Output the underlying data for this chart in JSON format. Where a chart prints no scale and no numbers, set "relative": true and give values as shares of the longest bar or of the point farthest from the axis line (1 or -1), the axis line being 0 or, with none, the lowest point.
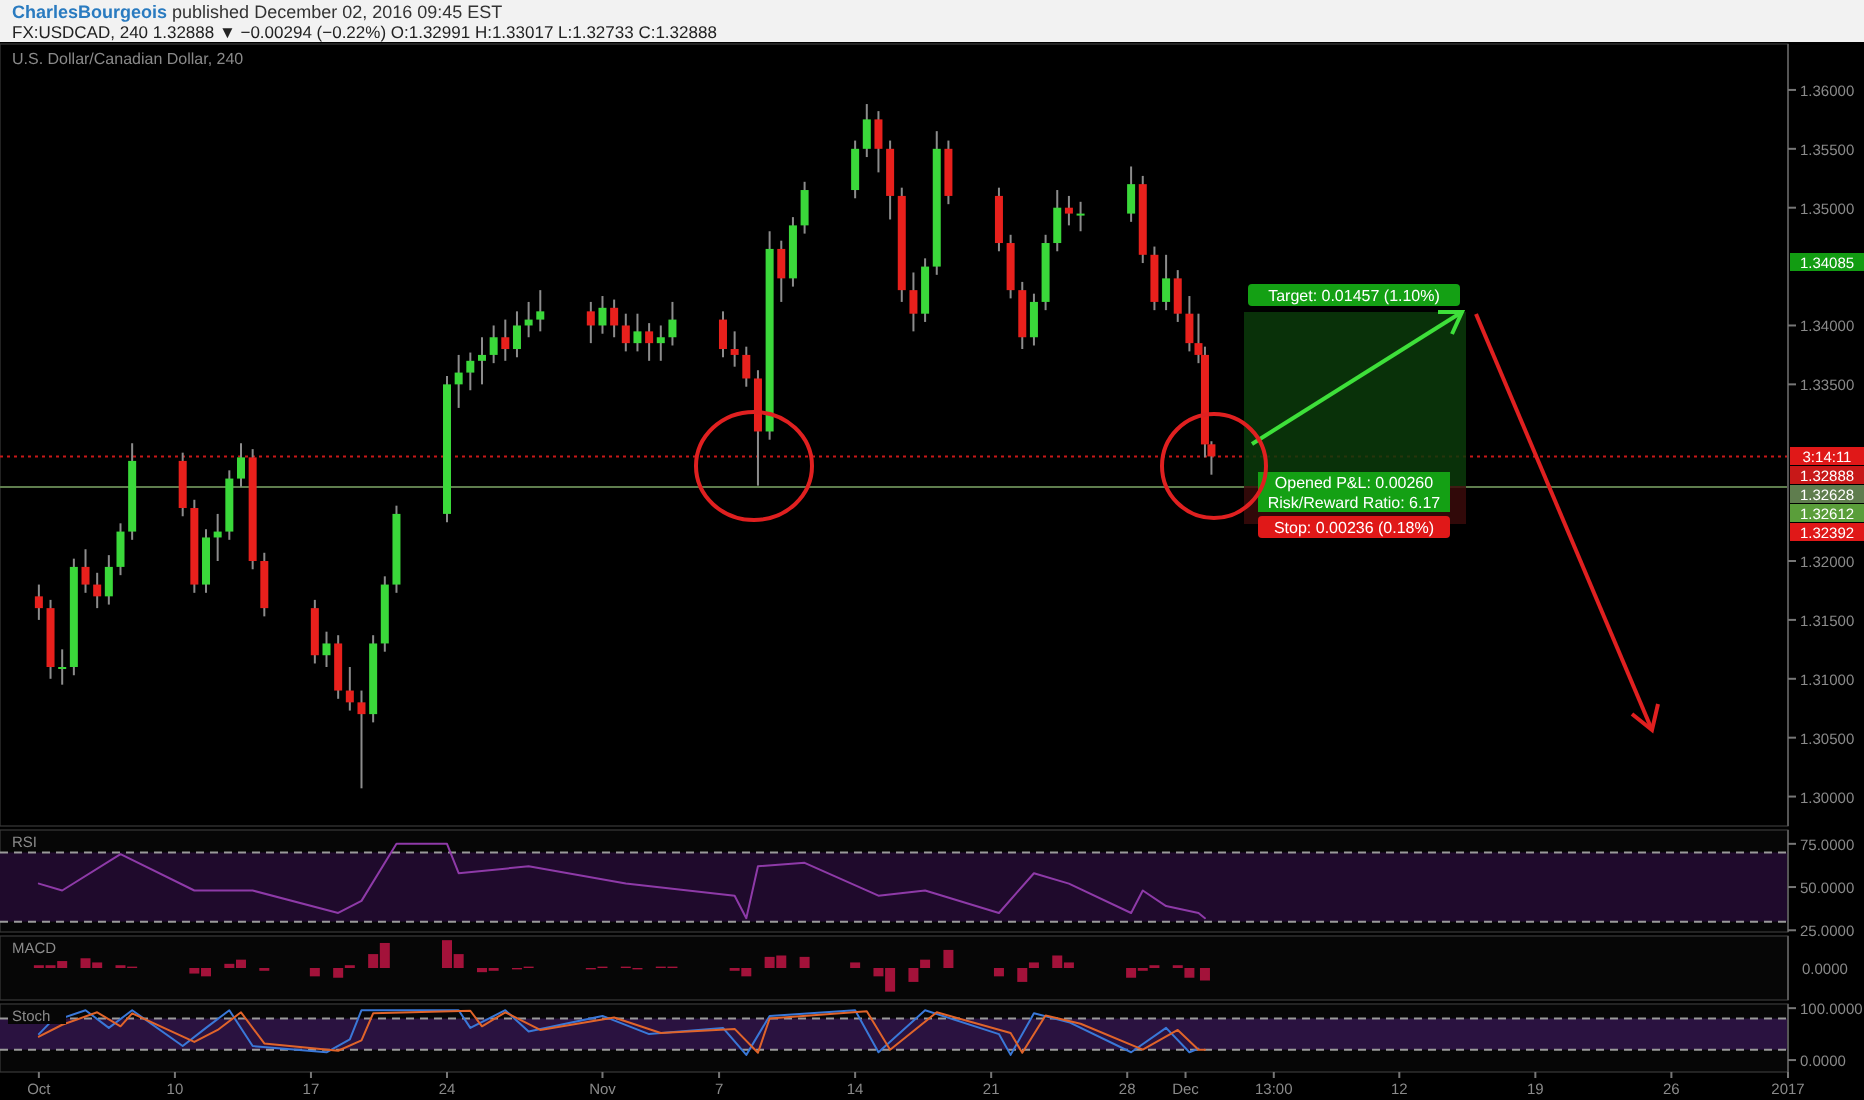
{
  "chart_data": [
    {
      "type": "candlestick",
      "title": "CharlesBourgeois published December 02, 2016 09:45 EST",
      "subtitle": "FX:USDCAD, 240 1.32888 ▼ −0.00294 (−0.22%) O:1.32991 H:1.33017 L:1.32733 C:1.32888",
      "x": [
        "2016-10-03T00:00",
        "2016-10-03T14:24",
        "2016-10-04T04:48",
        "2016-10-04T19:12",
        "2016-10-05T09:36",
        "2016-10-06T00:00",
        "2016-10-06T14:24",
        "2016-10-07T04:48",
        "2016-10-07T19:12",
        "2016-10-10T09:36",
        "2016-10-11T00:00",
        "2016-10-11T14:24",
        "2016-10-12T04:48",
        "2016-10-12T19:12",
        "2016-10-13T09:36",
        "2016-10-14T00:00",
        "2016-10-14T14:24",
        "2016-10-17T04:48",
        "2016-10-17T19:12",
        "2016-10-18T09:36",
        "2016-10-19T00:00",
        "2016-10-19T14:24",
        "2016-10-20T04:48",
        "2016-10-20T19:12",
        "2016-10-21T09:36",
        "2016-10-24T00:00",
        "2016-10-24T14:24",
        "2016-10-25T04:48",
        "2016-10-25T19:12",
        "2016-10-26T09:36",
        "2016-10-27T00:00",
        "2016-10-27T14:24",
        "2016-10-28T04:48",
        "2016-10-28T19:12",
        "2016-10-31T09:36",
        "2016-11-01T00:00",
        "2016-11-01T14:24",
        "2016-11-02T04:48",
        "2016-11-02T19:12",
        "2016-11-03T09:36",
        "2016-11-04T00:00",
        "2016-11-04T14:24",
        "2016-11-07T04:48",
        "2016-11-07T19:12",
        "2016-11-08T09:36",
        "2016-11-09T00:00",
        "2016-11-09T14:24",
        "2016-11-10T04:48",
        "2016-11-10T19:12",
        "2016-11-11T09:36",
        "2016-11-14T00:00",
        "2016-11-14T14:24",
        "2016-11-15T04:48",
        "2016-11-15T19:12",
        "2016-11-16T09:36",
        "2016-11-17T00:00",
        "2016-11-17T14:24",
        "2016-11-18T04:48",
        "2016-11-18T19:12",
        "2016-11-21T09:36",
        "2016-11-22T00:00",
        "2016-11-22T14:24",
        "2016-11-23T04:48",
        "2016-11-23T19:12",
        "2016-11-24T09:36",
        "2016-11-25T00:00",
        "2016-11-25T14:24",
        "2016-11-28T04:48",
        "2016-11-28T19:12",
        "2016-11-29T09:36",
        "2016-11-30T00:00",
        "2016-11-30T14:24",
        "2016-12-01T04:48",
        "2016-12-01T16:00",
        "2016-12-02T00:00",
        "2016-12-02T08:00"
      ],
      "ohlc": [
        [
          1.317,
          1.318,
          1.315,
          1.316
        ],
        [
          1.316,
          1.3167,
          1.31,
          1.311
        ],
        [
          1.311,
          1.3125,
          1.3095,
          1.311
        ],
        [
          1.311,
          1.3202,
          1.3103,
          1.3195
        ],
        [
          1.3195,
          1.321,
          1.3173,
          1.318
        ],
        [
          1.318,
          1.319,
          1.316,
          1.317
        ],
        [
          1.317,
          1.3205,
          1.3163,
          1.3195
        ],
        [
          1.3195,
          1.3232,
          1.3188,
          1.3225
        ],
        [
          1.3225,
          1.33,
          1.3218,
          1.3285
        ],
        [
          1.3285,
          1.3292,
          1.3238,
          1.3245
        ],
        [
          1.3245,
          1.3252,
          1.3173,
          1.318
        ],
        [
          1.318,
          1.3227,
          1.3173,
          1.322
        ],
        [
          1.322,
          1.324,
          1.32,
          1.3225
        ],
        [
          1.3225,
          1.3277,
          1.3218,
          1.327
        ],
        [
          1.327,
          1.33,
          1.3263,
          1.3288
        ],
        [
          1.3288,
          1.3295,
          1.3193,
          1.32
        ],
        [
          1.32,
          1.3207,
          1.3153,
          1.316
        ],
        [
          1.316,
          1.3167,
          1.3113,
          1.312
        ],
        [
          1.312,
          1.314,
          1.311,
          1.313
        ],
        [
          1.313,
          1.3137,
          1.3083,
          1.309
        ],
        [
          1.309,
          1.311,
          1.3073,
          1.308
        ],
        [
          1.308,
          1.309,
          1.3007,
          1.307
        ],
        [
          1.307,
          1.3137,
          1.3063,
          1.313
        ],
        [
          1.313,
          1.3187,
          1.3123,
          1.318
        ],
        [
          1.318,
          1.3247,
          1.3173,
          1.324
        ],
        [
          1.324,
          1.3357,
          1.3233,
          1.335
        ],
        [
          1.335,
          1.3375,
          1.333,
          1.336
        ],
        [
          1.336,
          1.3377,
          1.3345,
          1.337
        ],
        [
          1.337,
          1.339,
          1.335,
          1.3375
        ],
        [
          1.3375,
          1.34,
          1.3368,
          1.339
        ],
        [
          1.339,
          1.3405,
          1.337,
          1.338
        ],
        [
          1.338,
          1.3412,
          1.3373,
          1.34
        ],
        [
          1.34,
          1.342,
          1.339,
          1.3405
        ],
        [
          1.3405,
          1.343,
          1.3395,
          1.3412
        ],
        [
          1.3412,
          1.342,
          1.3385,
          1.34
        ],
        [
          1.34,
          1.3425,
          1.3393,
          1.3415
        ],
        [
          1.3415,
          1.3422,
          1.339,
          1.34
        ],
        [
          1.34,
          1.341,
          1.3378,
          1.3385
        ],
        [
          1.3385,
          1.341,
          1.3378,
          1.3395
        ],
        [
          1.3395,
          1.3402,
          1.337,
          1.3385
        ],
        [
          1.3385,
          1.34,
          1.337,
          1.339
        ],
        [
          1.339,
          1.342,
          1.3383,
          1.3405
        ],
        [
          1.3405,
          1.3412,
          1.3373,
          1.338
        ],
        [
          1.338,
          1.3395,
          1.3365,
          1.3375
        ],
        [
          1.3375,
          1.3382,
          1.3348,
          1.3355
        ],
        [
          1.3355,
          1.3362,
          1.3264,
          1.331
        ],
        [
          1.331,
          1.348,
          1.3303,
          1.3465
        ],
        [
          1.3465,
          1.3472,
          1.342,
          1.344
        ],
        [
          1.344,
          1.3492,
          1.3433,
          1.3485
        ],
        [
          1.3485,
          1.3522,
          1.3478,
          1.3515
        ],
        [
          1.3515,
          1.3557,
          1.3508,
          1.355
        ],
        [
          1.355,
          1.3588,
          1.3543,
          1.3575
        ],
        [
          1.3575,
          1.3582,
          1.353,
          1.355
        ],
        [
          1.355,
          1.3557,
          1.349,
          1.351
        ],
        [
          1.351,
          1.3517,
          1.342,
          1.343
        ],
        [
          1.343,
          1.3445,
          1.3395,
          1.341
        ],
        [
          1.341,
          1.3457,
          1.3403,
          1.345
        ],
        [
          1.345,
          1.3565,
          1.3443,
          1.355
        ],
        [
          1.355,
          1.3557,
          1.3503,
          1.351
        ],
        [
          1.351,
          1.3517,
          1.3463,
          1.347
        ],
        [
          1.347,
          1.3477,
          1.3423,
          1.343
        ],
        [
          1.343,
          1.3437,
          1.338,
          1.339
        ],
        [
          1.339,
          1.3427,
          1.3383,
          1.342
        ],
        [
          1.342,
          1.3477,
          1.3413,
          1.347
        ],
        [
          1.347,
          1.3515,
          1.3463,
          1.35
        ],
        [
          1.35,
          1.351,
          1.3485,
          1.3495
        ],
        [
          1.3495,
          1.3505,
          1.348,
          1.3495
        ],
        [
          1.3495,
          1.3535,
          1.3488,
          1.352
        ],
        [
          1.352,
          1.3527,
          1.3453,
          1.346
        ],
        [
          1.346,
          1.3467,
          1.3413,
          1.342
        ],
        [
          1.342,
          1.346,
          1.3413,
          1.344
        ],
        [
          1.344,
          1.3447,
          1.3403,
          1.341
        ],
        [
          1.341,
          1.3425,
          1.3378,
          1.3385
        ],
        [
          1.3385,
          1.341,
          1.3368,
          1.3375
        ],
        [
          1.3375,
          1.3382,
          1.3288,
          1.3299
        ],
        [
          1.32991,
          1.33017,
          1.32733,
          1.32888
        ]
      ],
      "colors": [
        "#e8201c",
        "#e8201c",
        "#3ad83a",
        "#3ad83a",
        "#e8201c",
        "#e8201c",
        "#3ad83a",
        "#3ad83a",
        "#3ad83a",
        "#e8201c",
        "#e8201c",
        "#3ad83a",
        "#3ad83a",
        "#3ad83a",
        "#3ad83a",
        "#e8201c",
        "#e8201c",
        "#e8201c",
        "#3ad83a",
        "#e8201c",
        "#e8201c",
        "#e8201c",
        "#3ad83a",
        "#3ad83a",
        "#3ad83a",
        "#3ad83a",
        "#3ad83a",
        "#3ad83a",
        "#3ad83a",
        "#3ad83a",
        "#e8201c",
        "#3ad83a",
        "#3ad83a",
        "#3ad83a",
        "#e8201c",
        "#3ad83a",
        "#e8201c",
        "#e8201c",
        "#3ad83a",
        "#e8201c",
        "#3ad83a",
        "#3ad83a",
        "#e8201c",
        "#e8201c",
        "#e8201c",
        "#e8201c",
        "#3ad83a",
        "#e8201c",
        "#3ad83a",
        "#3ad83a",
        "#3ad83a",
        "#3ad83a",
        "#e8201c",
        "#e8201c",
        "#e8201c",
        "#e8201c",
        "#3ad83a",
        "#3ad83a",
        "#e8201c",
        "#e8201c",
        "#e8201c",
        "#e8201c",
        "#3ad83a",
        "#3ad83a",
        "#3ad83a",
        "#e8201c",
        "#3ad83a",
        "#3ad83a",
        "#e8201c",
        "#e8201c",
        "#3ad83a",
        "#e8201c",
        "#e8201c",
        "#e8201c",
        "#e8201c",
        "#e8201c"
      ],
      "xlim": [
        "2016-10-01",
        "2017-01-01"
      ],
      "ylim": [
        1.2975,
        1.3639
      ],
      "yticks": [
        {
          "value": 1.3,
          "label": "1.30000"
        },
        {
          "value": 1.305,
          "label": "1.30500"
        },
        {
          "value": 1.31,
          "label": "1.31000"
        },
        {
          "value": 1.315,
          "label": "1.31500"
        },
        {
          "value": 1.32,
          "label": "1.32000"
        },
        {
          "value": 1.335,
          "label": "1.33500"
        },
        {
          "value": 1.34,
          "label": "1.34000"
        },
        {
          "value": 1.35,
          "label": "1.35000"
        },
        {
          "value": 1.355,
          "label": "1.35500"
        },
        {
          "value": 1.36,
          "label": "1.36000"
        }
      ],
      "tick_labels": "y",
      "ref_lines": [
        {
          "axis": "y",
          "value": 1.32888,
          "label": "1.32888",
          "color": "#c81818",
          "line_style": "dotted"
        },
        {
          "axis": "y",
          "value": 1.32628,
          "label": "1.32628",
          "color": "#5f7d4e",
          "line_style": "solid"
        }
      ],
      "annotations": [
        "U.S. Dollar/Canadian Dollar, 240",
        "1.34085",
        "3:14:11",
        "1.32612",
        "1.32392",
        "Target: 0.01457 (1.10%)",
        "Opened P&L: 0.00260",
        "Risk/Reward Ratio: 6.17",
        "Stop: 0.00236 (0.18%)"
      ]
    },
    {
      "type": "line",
      "title": "RSI",
      "xlim": [
        "2016-10-01",
        "2017-01-01"
      ],
      "ylim": [
        24,
        83
      ],
      "yticks": [
        {
          "value": 25,
          "label": "25.0000"
        },
        {
          "value": 50,
          "label": "50.0000"
        },
        {
          "value": 75,
          "label": "75.0000"
        }
      ],
      "tick_labels": "y",
      "bands": [
        {
          "axis": "y",
          "from": 30,
          "to": 70,
          "color": "#1f0a2c"
        }
      ],
      "ref_lines": [
        {
          "axis": "y",
          "value": 70,
          "color": "#9a9a9a",
          "line_style": "dashed"
        },
        {
          "axis": "y",
          "value": 30,
          "color": "#9a9a9a",
          "line_style": "dashed"
        }
      ],
      "series": [
        {
          "color": "#8e3aa8",
          "x": [
            "2016-10-03T00:00",
            "2016-10-04T04:48",
            "2016-10-07T04:48",
            "2016-10-11T00:00",
            "2016-10-14T00:00",
            "2016-10-18T09:36",
            "2016-10-19T14:24",
            "2016-10-21T09:36",
            "2016-10-24T00:00",
            "2016-10-24T14:24",
            "2016-10-28T04:48",
            "2016-11-02T04:48",
            "2016-11-07T19:12",
            "2016-11-08T09:36",
            "2016-11-09T00:00",
            "2016-11-11T09:36",
            "2016-11-15T04:48",
            "2016-11-17T14:24",
            "2016-11-21T09:36",
            "2016-11-23T04:48",
            "2016-11-25T00:00",
            "2016-11-28T04:48",
            "2016-11-28T19:12",
            "2016-11-30T00:00",
            "2016-12-01T16:00",
            "2016-12-02T00:00"
          ],
          "values": [
            52,
            48,
            69,
            48,
            48,
            35,
            42,
            75,
            75,
            58,
            62,
            52,
            45,
            32,
            62,
            64,
            45,
            48,
            35,
            58,
            52,
            35,
            48,
            39,
            35,
            32
          ]
        }
      ]
    },
    {
      "type": "bar",
      "title": "MACD",
      "relative": true,
      "xlim": [
        "2016-10-01",
        "2017-01-01"
      ],
      "tick_labels": false,
      "annotations": [
        "0.0000"
      ],
      "series": [
        {
          "color": "#a3123a",
          "x": [
            "2016-10-03T00:00",
            "2016-10-03T14:24",
            "2016-10-04T04:48",
            "2016-10-05T09:36",
            "2016-10-06T00:00",
            "2016-10-07T04:48",
            "2016-10-07T19:12",
            "2016-10-11T00:00",
            "2016-10-11T14:24",
            "2016-10-12T19:12",
            "2016-10-13T09:36",
            "2016-10-14T14:24",
            "2016-10-17T04:48",
            "2016-10-18T09:36",
            "2016-10-19T00:00",
            "2016-10-20T04:48",
            "2016-10-20T19:12",
            "2016-10-24T00:00",
            "2016-10-24T14:24",
            "2016-10-25T19:12",
            "2016-10-26T09:36",
            "2016-10-27T14:24",
            "2016-10-28T04:48",
            "2016-10-31T09:36",
            "2016-11-01T00:00",
            "2016-11-02T04:48",
            "2016-11-02T19:12",
            "2016-11-04T00:00",
            "2016-11-04T14:24",
            "2016-11-07T19:12",
            "2016-11-08T09:36",
            "2016-11-09T14:24",
            "2016-11-10T04:48",
            "2016-11-11T09:36",
            "2016-11-14T00:00",
            "2016-11-15T04:48",
            "2016-11-15T19:12",
            "2016-11-17T00:00",
            "2016-11-17T14:24",
            "2016-11-18T19:12",
            "2016-11-21T09:36",
            "2016-11-22T14:24",
            "2016-11-23T04:48",
            "2016-11-24T09:36",
            "2016-11-25T00:00",
            "2016-11-28T04:48",
            "2016-11-28T19:12",
            "2016-11-29T09:36",
            "2016-11-30T14:24",
            "2016-12-01T04:48",
            "2016-12-02T00:00"
          ],
          "values": [
            0.1,
            0.1,
            0.25,
            0.35,
            0.2,
            0.1,
            0.05,
            -0.2,
            -0.3,
            0.15,
            0.3,
            -0.1,
            -0.3,
            -0.35,
            0.1,
            0.5,
            0.9,
            1,
            0.5,
            -0.15,
            -0.1,
            -0.05,
            0.05,
            -0.05,
            0.05,
            0.05,
            -0.05,
            0.05,
            0.05,
            -0.1,
            -0.3,
            0.4,
            0.45,
            0.4,
            0.2,
            -0.3,
            -0.85,
            -0.5,
            0.3,
            0.65,
            -0.3,
            -0.5,
            0.2,
            0.45,
            0.2,
            -0.35,
            -0.1,
            0.1,
            0.1,
            -0.35,
            -0.45
          ]
        }
      ]
    },
    {
      "type": "line",
      "title": "Stoch",
      "xlim": [
        "2016-10-01",
        "2017-01-01"
      ],
      "ylim": [
        -23,
        108
      ],
      "yticks": [
        {
          "value": 0,
          "label": "0.0000"
        },
        {
          "value": 100,
          "label": "100.0000"
        }
      ],
      "xticks": [
        {
          "value": "2016-10-03",
          "label": "Oct"
        },
        {
          "value": "2016-10-10",
          "label": "10"
        },
        {
          "value": "2016-10-17",
          "label": "17"
        },
        {
          "value": "2016-10-24",
          "label": "24"
        },
        {
          "value": "2016-11-01",
          "label": "Nov"
        },
        {
          "value": "2016-11-07",
          "label": "7"
        },
        {
          "value": "2016-11-14",
          "label": "14"
        },
        {
          "value": "2016-11-21",
          "label": "21"
        },
        {
          "value": "2016-11-28",
          "label": "28"
        },
        {
          "value": "2016-12-01",
          "label": "Dec"
        },
        {
          "value": "2016-12-05T13:00",
          "label": "13:00"
        },
        {
          "value": "2016-12-12",
          "label": "12"
        },
        {
          "value": "2016-12-19",
          "label": "19"
        },
        {
          "value": "2016-12-26",
          "label": "26"
        },
        {
          "value": "2017-01-01",
          "label": "2017"
        }
      ],
      "bands": [
        {
          "axis": "y",
          "from": 20,
          "to": 80,
          "color": "#2a1240"
        }
      ],
      "ref_lines": [
        {
          "axis": "y",
          "value": 80,
          "color": "#9a9a9a",
          "line_style": "dashed"
        },
        {
          "axis": "y",
          "value": 20,
          "color": "#9a9a9a",
          "line_style": "dashed"
        }
      ],
      "series": [
        {
          "color": "#3a78d8",
          "x": [
            "2016-10-03T00:00",
            "2016-10-03T14:24",
            "2016-10-05T09:36",
            "2016-10-06T14:24",
            "2016-10-07T19:12",
            "2016-10-10T09:36",
            "2016-10-11T14:24",
            "2016-10-12T19:12",
            "2016-10-14T00:00",
            "2016-10-17T19:12",
            "2016-10-19T00:00",
            "2016-10-19T14:24",
            "2016-10-24T14:24",
            "2016-10-25T04:48",
            "2016-10-27T00:00",
            "2016-10-28T04:48",
            "2016-11-01T00:00",
            "2016-11-03T09:36",
            "2016-11-07T04:48",
            "2016-11-08T09:36",
            "2016-11-09T14:24",
            "2016-11-14T00:00",
            "2016-11-15T04:48",
            "2016-11-17T14:24",
            "2016-11-21T09:36",
            "2016-11-22T00:00",
            "2016-11-23T04:48",
            "2016-11-25T00:00",
            "2016-11-28T04:48",
            "2016-11-30T00:00",
            "2016-12-01T04:48",
            "2016-12-01T16:00"
          ],
          "values": [
            50,
            73,
            96,
            62,
            96,
            27,
            62,
            96,
            27,
            15,
            40,
            96,
            96,
            62,
            96,
            55,
            85,
            50,
            62,
            10,
            85,
            96,
            15,
            96,
            50,
            10,
            90,
            73,
            15,
            62,
            15,
            22
          ]
        },
        {
          "color": "#e0642a",
          "x": [
            "2016-10-03T00:00",
            "2016-10-04T04:48",
            "2016-10-06T00:00",
            "2016-10-07T04:48",
            "2016-10-07T19:12",
            "2016-10-11T00:00",
            "2016-10-12T04:48",
            "2016-10-13T09:36",
            "2016-10-14T14:24",
            "2016-10-18T09:36",
            "2016-10-19T14:24",
            "2016-10-20T04:48",
            "2016-10-25T04:48",
            "2016-10-25T19:12",
            "2016-10-27T00:00",
            "2016-10-28T19:12",
            "2016-11-01T14:24",
            "2016-11-04T00:00",
            "2016-11-07T19:12",
            "2016-11-09T00:00",
            "2016-11-09T14:24",
            "2016-11-14T14:24",
            "2016-11-15T19:12",
            "2016-11-18T04:48",
            "2016-11-22T00:00",
            "2016-11-22T14:24",
            "2016-11-23T19:12",
            "2016-11-25T14:24",
            "2016-11-28T19:12",
            "2016-11-30T14:24",
            "2016-12-01T16:00",
            "2016-12-02T00:00"
          ],
          "values": [
            45,
            68,
            92,
            65,
            90,
            35,
            58,
            92,
            32,
            18,
            38,
            90,
            95,
            65,
            92,
            58,
            82,
            52,
            60,
            14,
            80,
            94,
            20,
            92,
            52,
            14,
            86,
            70,
            20,
            58,
            20,
            20
          ]
        }
      ]
    }
  ]
}
